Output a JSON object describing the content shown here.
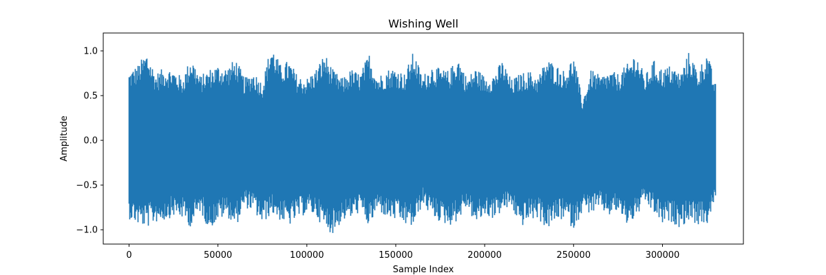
{
  "chart_data": {
    "type": "line",
    "title": "Wishing Well",
    "xlabel": "Sample Index",
    "ylabel": "Amplitude",
    "xlim": [
      -14500,
      345500
    ],
    "ylim": [
      -1.16,
      1.2
    ],
    "xticks": [
      0,
      50000,
      100000,
      150000,
      200000,
      250000,
      300000
    ],
    "yticks": [
      -1.0,
      -0.5,
      0.0,
      0.5,
      1.0
    ],
    "xtick_labels": [
      "0",
      "50000",
      "100000",
      "150000",
      "200000",
      "250000",
      "300000"
    ],
    "ytick_labels": [
      "−1.0",
      "−0.5",
      "0.0",
      "0.5",
      "1.0"
    ],
    "grid": false,
    "line_color": "#1f77b4",
    "series": [
      {
        "n_samples": 331000,
        "x": [
          0,
          5000,
          10000,
          15000,
          20000,
          25000,
          30000,
          35000,
          40000,
          45000,
          50000,
          55000,
          60000,
          65000,
          70000,
          75000,
          80000,
          85000,
          90000,
          95000,
          100000,
          105000,
          110000,
          115000,
          120000,
          125000,
          130000,
          135000,
          140000,
          145000,
          150000,
          155000,
          160000,
          165000,
          170000,
          175000,
          180000,
          185000,
          190000,
          195000,
          200000,
          205000,
          210000,
          215000,
          220000,
          225000,
          230000,
          235000,
          240000,
          245000,
          250000,
          255000,
          260000,
          265000,
          270000,
          275000,
          280000,
          285000,
          290000,
          295000,
          300000,
          305000,
          310000,
          315000,
          320000,
          325000,
          330000
        ],
        "max": [
          0.78,
          0.85,
          1.0,
          0.75,
          0.82,
          0.8,
          0.7,
          0.95,
          0.72,
          0.8,
          0.85,
          0.82,
          0.92,
          0.7,
          0.78,
          0.65,
          1.09,
          0.85,
          0.9,
          0.72,
          0.7,
          0.8,
          0.98,
          0.78,
          0.7,
          0.8,
          0.75,
          0.98,
          0.72,
          0.8,
          0.82,
          0.75,
          1.0,
          0.72,
          0.85,
          0.8,
          0.78,
          0.95,
          0.7,
          0.82,
          0.72,
          0.75,
          0.9,
          0.68,
          0.75,
          0.78,
          0.72,
          0.92,
          0.85,
          0.78,
          0.95,
          0.45,
          0.8,
          0.72,
          0.78,
          0.75,
          0.85,
          1.0,
          0.72,
          0.9,
          0.8,
          0.85,
          0.75,
          1.0,
          0.78,
          1.0,
          0.62
        ],
        "min": [
          -0.88,
          -0.95,
          -0.98,
          -0.92,
          -0.9,
          -0.85,
          -0.88,
          -0.98,
          -0.8,
          -1.0,
          -0.9,
          -0.85,
          -0.97,
          -0.75,
          -0.8,
          -0.95,
          -0.82,
          -0.9,
          -0.96,
          -0.88,
          -0.82,
          -0.85,
          -1.0,
          -1.05,
          -0.9,
          -0.88,
          -0.8,
          -0.98,
          -0.78,
          -0.88,
          -0.9,
          -0.95,
          -0.98,
          -0.72,
          -0.85,
          -0.92,
          -0.96,
          -0.9,
          -0.75,
          -0.95,
          -0.85,
          -0.88,
          -0.8,
          -0.75,
          -0.98,
          -0.9,
          -0.88,
          -1.0,
          -0.92,
          -0.88,
          -1.0,
          -0.8,
          -0.82,
          -0.78,
          -0.85,
          -0.8,
          -0.95,
          -0.88,
          -0.7,
          -0.82,
          -0.95,
          -0.92,
          -0.98,
          -0.9,
          -0.95,
          -0.95,
          -0.68
        ]
      }
    ]
  }
}
